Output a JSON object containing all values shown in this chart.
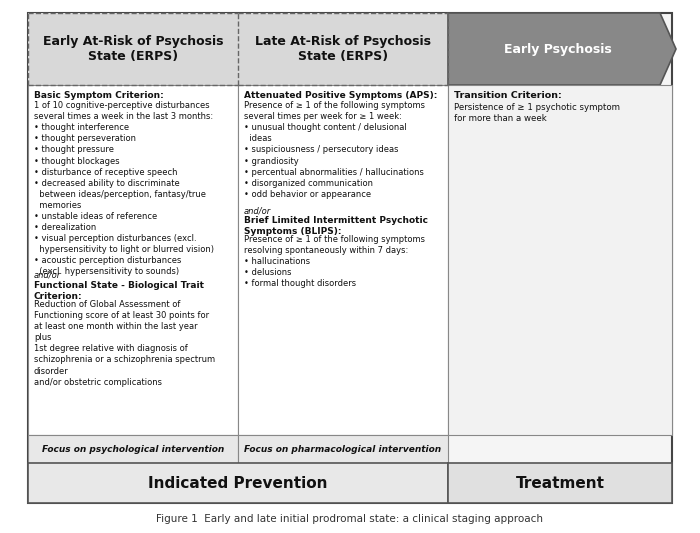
{
  "title": "Figure 1  Early and late initial prodromal state: a clinical staging approach",
  "col1_header": "Early At-Risk of Psychosis\nState (ERPS)",
  "col2_header": "Late At-Risk of Psychosis\nState (ERPS)",
  "col3_header": "Early Psychosis",
  "col1_body_title1": "Basic Symptom Criterion:",
  "col1_body_text1": "1 of 10 cognitive-perceptive disturbances\nseveral times a week in the last 3 months:\n• thought interference\n• thought perseveration\n• thought pressure\n• thought blockages\n• disturbance of receptive speech\n• decreased ability to discriminate\n  between ideas/perception, fantasy/true\n  memories\n• unstable ideas of reference\n• derealization\n• visual perception disturbances (excl.\n  hypersensitivity to light or blurred vision)\n• acoustic perception disturbances\n  (excl. hypersensitivity to sounds)",
  "col1_body_andor1": "and/or",
  "col1_body_title2": "Functional State - Biological Trait\nCriterion:",
  "col1_body_text2": "Reduction of Global Assessment of\nFunctioning score of at least 30 points for\nat least one month within the last year\nplus\n1st degree relative with diagnosis of\nschizophrenia or a schizophrenia spectrum\ndisorder\nand/or obstetric complications",
  "col2_body_title1": "Attenuated Positive Symptoms (APS):",
  "col2_body_text1": "Presence of ≥ 1 of the following symptoms\nseveral times per week for ≥ 1 week:\n• unusual thought content / delusional\n  ideas\n• suspiciousness / persecutory ideas\n• grandiosity\n• percentual abnormalities / hallucinations\n• disorganized communication\n• odd behavior or appearance",
  "col2_body_andor1": "and/or",
  "col2_body_title2": "Brief Limited Intermittent Psychotic\nSymptoms (BLIPS):",
  "col2_body_text2": "Presence of ≥ 1 of the following symptoms\nresolving spontaneously within 7 days:\n• hallucinations\n• delusions\n• formal thought disorders",
  "col3_body_title1": "Transition Criterion:",
  "col3_body_text1": "Persistence of ≥ 1 psychotic symptom\nfor more than a week",
  "col1_footer": "Focus on psychological intervention",
  "col2_footer": "Focus on pharmacological intervention",
  "footer_bottom1": "Indicated Prevention",
  "footer_bottom2": "Treatment",
  "header_bg1": "#d8d8d8",
  "header_bg2": "#d8d8d8",
  "header_bg3": "#888888",
  "body_bg12": "#ffffff",
  "body_bg3": "#f2f2f2",
  "footer_bg12": "#e8e8e8",
  "bottom_bg1": "#e8e8e8",
  "bottom_bg2": "#e0e0e0",
  "outer_border": "#444444",
  "inner_border": "#888888",
  "dashed_border": "#666666",
  "text_dark": "#111111",
  "text_white": "#ffffff"
}
